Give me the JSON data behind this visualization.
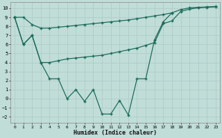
{
  "xlabel": "Humidex (Indice chaleur)",
  "x_values": [
    0,
    1,
    2,
    3,
    4,
    5,
    6,
    7,
    8,
    9,
    10,
    11,
    12,
    13,
    14,
    15,
    16,
    17,
    18,
    19,
    20,
    21,
    22,
    23
  ],
  "line_max": [
    9.0,
    9.0,
    8.2,
    7.8,
    7.8,
    7.9,
    8.0,
    8.1,
    8.2,
    8.3,
    8.4,
    8.5,
    8.6,
    8.7,
    8.85,
    9.0,
    9.15,
    9.3,
    9.5,
    9.85,
    10.05,
    10.1,
    10.15,
    10.2
  ],
  "line_mean": [
    9.0,
    6.0,
    7.0,
    4.0,
    4.0,
    4.2,
    4.4,
    4.5,
    4.6,
    4.7,
    4.8,
    5.0,
    5.2,
    5.4,
    5.6,
    5.9,
    6.2,
    8.3,
    8.6,
    9.65,
    9.9,
    10.05,
    10.1,
    10.15
  ],
  "line_min_x": [
    0,
    1,
    2,
    3,
    4,
    5,
    6,
    7,
    8,
    9,
    10,
    11,
    12,
    13,
    14,
    15,
    16,
    17,
    18
  ],
  "line_min_y": [
    9.0,
    6.0,
    7.0,
    4.0,
    2.2,
    2.2,
    0.0,
    1.0,
    -0.3,
    1.0,
    -1.7,
    -1.7,
    -0.2,
    -1.8,
    2.2,
    2.2,
    6.5,
    8.5,
    9.5
  ],
  "line_color": "#1a6b5a",
  "bg_color": "#c0ddd8",
  "grid_color": "#b0ccc8",
  "marker": "+",
  "xlim": [
    -0.5,
    23.5
  ],
  "ylim": [
    -2.7,
    10.7
  ],
  "yticks": [
    -2,
    -1,
    0,
    1,
    2,
    3,
    4,
    5,
    6,
    7,
    8,
    9,
    10
  ],
  "xticks": [
    0,
    1,
    2,
    3,
    4,
    5,
    6,
    7,
    8,
    9,
    10,
    11,
    12,
    13,
    14,
    15,
    16,
    17,
    18,
    19,
    20,
    21,
    22,
    23
  ]
}
